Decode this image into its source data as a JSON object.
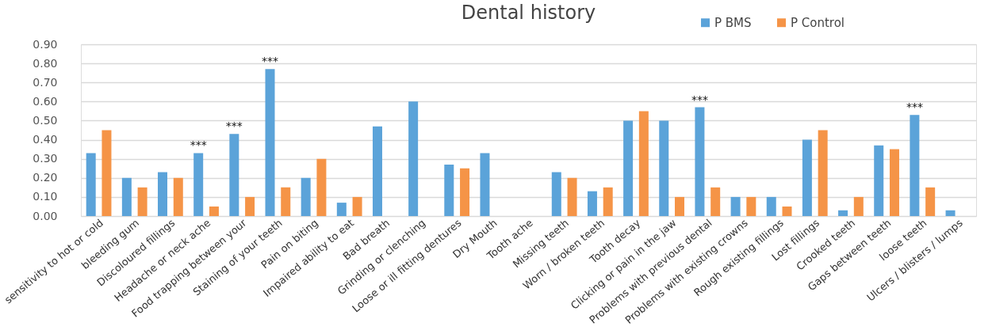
{
  "chart_data": {
    "type": "bar",
    "title": "Dental history",
    "categories": [
      "sensitivity to hot or cold",
      "bleeding gum",
      "Discoloured fillings",
      "Headache or neck ache",
      "Food trapping between your",
      "Staining of your teeth",
      "Pain on biting",
      "Impaired ability to eat",
      "Bad breath",
      "Grinding or clenching",
      "Loose or ill fitting dentures",
      "Dry Mouth",
      "Tooth ache",
      "Missing teeth",
      "Worn / broken teeth",
      "Tooth decay",
      "Clicking or pain in the jaw",
      "Problems with previous dental",
      "Problems with existing crowns",
      "Rough existing fillings",
      "Lost fillings",
      "Crooked teeth",
      "Gaps between teeth",
      "loose teeth",
      "Ulcers / blisters / lumps"
    ],
    "series": [
      {
        "name": "P BMS",
        "color": "#5ba3d9",
        "values": [
          0.33,
          0.2,
          0.23,
          0.33,
          0.43,
          0.77,
          0.2,
          0.07,
          0.47,
          0.6,
          0.27,
          0.33,
          null,
          0.23,
          0.13,
          0.5,
          0.5,
          0.57,
          0.1,
          0.1,
          0.4,
          0.03,
          0.37,
          0.53,
          0.03
        ],
        "value_labels": [
          null,
          null,
          null,
          "***",
          "***",
          "***",
          null,
          null,
          null,
          null,
          null,
          null,
          null,
          null,
          null,
          null,
          null,
          "***",
          null,
          null,
          null,
          null,
          null,
          "***",
          null
        ]
      },
      {
        "name": "P Control",
        "color": "#f59447",
        "values": [
          0.45,
          0.15,
          0.2,
          0.05,
          0.1,
          0.15,
          0.3,
          0.1,
          null,
          null,
          0.25,
          null,
          null,
          0.2,
          0.15,
          0.55,
          0.1,
          0.15,
          0.1,
          0.05,
          0.45,
          0.1,
          0.35,
          0.15,
          null
        ]
      }
    ],
    "ylim": [
      0,
      0.9
    ],
    "yticks": [
      {
        "value": 0,
        "label": "0.00"
      },
      {
        "value": 0.1,
        "label": "0.10"
      },
      {
        "value": 0.2,
        "label": "0.20"
      },
      {
        "value": 0.3,
        "label": "0.30"
      },
      {
        "value": 0.4,
        "label": "0.40"
      },
      {
        "value": 0.5,
        "label": "0.50"
      },
      {
        "value": 0.6,
        "label": "0.60"
      },
      {
        "value": 0.7,
        "label": "0.70"
      },
      {
        "value": 0.8,
        "label": "0.80"
      },
      {
        "value": 0.9,
        "label": "0.90"
      }
    ],
    "grid": "y",
    "legend": "top right"
  }
}
